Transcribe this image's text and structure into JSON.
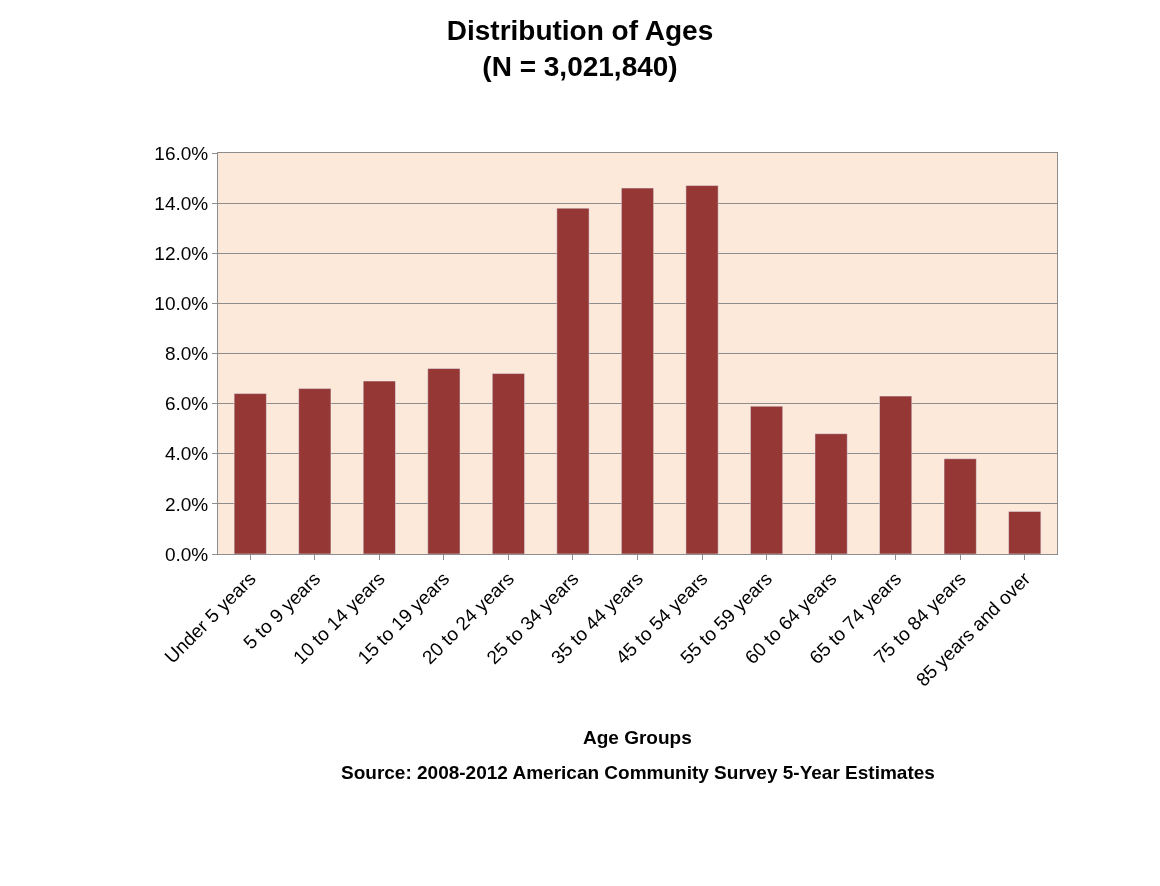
{
  "chart_data": {
    "type": "bar",
    "title": "Distribution of Ages\n(N = 3,021,840)",
    "xlabel": "Age Groups",
    "annotations": [
      "Source: 2008-2012 American Community Survey 5-Year Estimates"
    ],
    "categories": [
      "Under 5 years",
      "5 to 9 years",
      "10 to 14 years",
      "15 to 19 years",
      "20 to 24 years",
      "25 to 34 years",
      "35 to 44 years",
      "45 to 54 years",
      "55 to 59 years",
      "60 to 64 years",
      "65 to 74 years",
      "75 to 84 years",
      "85 years and over"
    ],
    "values": [
      6.4,
      6.6,
      6.9,
      7.4,
      7.2,
      13.8,
      14.6,
      14.7,
      5.9,
      4.8,
      6.3,
      3.8,
      1.7
    ],
    "color": "#953735",
    "ylim": [
      0,
      16
    ],
    "yticks": [
      {
        "value": 0,
        "label": "0.0%"
      },
      {
        "value": 2,
        "label": "2.0%"
      },
      {
        "value": 4,
        "label": "4.0%"
      },
      {
        "value": 6,
        "label": "6.0%"
      },
      {
        "value": 8,
        "label": "8.0%"
      },
      {
        "value": 10,
        "label": "10.0%"
      },
      {
        "value": 12,
        "label": "12.0%"
      },
      {
        "value": 14,
        "label": "14.0%"
      },
      {
        "value": 16,
        "label": "16.0%"
      }
    ],
    "grid": "y"
  }
}
